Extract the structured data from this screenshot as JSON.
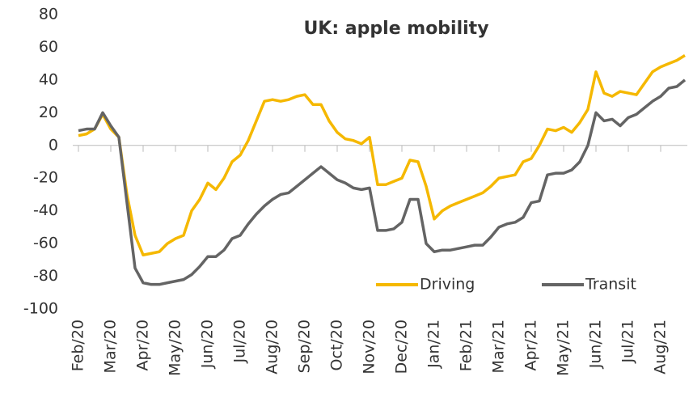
{
  "chart_data": {
    "type": "line",
    "title": "UK: apple mobility",
    "categories": [
      "Feb/20",
      null,
      null,
      null,
      "Mar/20",
      null,
      null,
      null,
      "Apr/20",
      null,
      null,
      null,
      "May/20",
      null,
      null,
      null,
      "Jun/20",
      null,
      null,
      null,
      "Jul/20",
      null,
      null,
      null,
      "Aug/20",
      null,
      null,
      null,
      "Sep/20",
      null,
      null,
      null,
      "Oct/20",
      null,
      null,
      null,
      "Nov/20",
      null,
      null,
      null,
      "Dec/20",
      null,
      null,
      null,
      "Jan/21",
      null,
      null,
      null,
      "Feb/21",
      null,
      null,
      null,
      "Mar/21",
      null,
      null,
      null,
      "Apr/21",
      null,
      null,
      null,
      "May/21",
      null,
      null,
      null,
      "Jun/21",
      null,
      null,
      null,
      "Jul/21",
      null,
      null,
      null,
      "Aug/21",
      null,
      null,
      null
    ],
    "series": [
      {
        "name": "Driving",
        "color": "#f5b800",
        "values": [
          6,
          7,
          10,
          19,
          10,
          5,
          -30,
          -55,
          -67,
          -66,
          -65,
          -60,
          -57,
          -55,
          -40,
          -33,
          -23,
          -27,
          -20,
          -10,
          -6,
          3,
          15,
          27,
          28,
          27,
          28,
          30,
          31,
          25,
          25,
          15,
          8,
          4,
          3,
          1,
          5,
          -24,
          -24,
          -22,
          -20,
          -9,
          -10,
          -25,
          -45,
          -40,
          -37,
          -35,
          -33,
          -31,
          -29,
          -25,
          -20,
          -19,
          -18,
          -10,
          -8,
          0,
          10,
          9,
          11,
          8,
          14,
          22,
          45,
          32,
          30,
          33,
          32,
          31,
          38,
          45,
          48,
          50,
          52,
          55
        ]
      },
      {
        "name": "Transit",
        "color": "#646464",
        "values": [
          9,
          10,
          10,
          20,
          12,
          5,
          -35,
          -75,
          -84,
          -85,
          -85,
          -84,
          -83,
          -82,
          -79,
          -74,
          -68,
          -68,
          -64,
          -57,
          -55,
          -48,
          -42,
          -37,
          -33,
          -30,
          -29,
          -25,
          -21,
          -17,
          -13,
          -17,
          -21,
          -23,
          -26,
          -27,
          -26,
          -52,
          -52,
          -51,
          -47,
          -33,
          -33,
          -60,
          -65,
          -64,
          -64,
          -63,
          -62,
          -61,
          -61,
          -56,
          -50,
          -48,
          -47,
          -44,
          -35,
          -34,
          -18,
          -17,
          -17,
          -15,
          -10,
          0,
          20,
          15,
          16,
          12,
          17,
          19,
          23,
          27,
          30,
          35,
          36,
          40
        ]
      }
    ],
    "ylim": [
      -100,
      80
    ],
    "yticks": [
      -100,
      -80,
      -60,
      -40,
      -20,
      0,
      20,
      40,
      60,
      80
    ],
    "grid": false,
    "legend": "lower right"
  }
}
